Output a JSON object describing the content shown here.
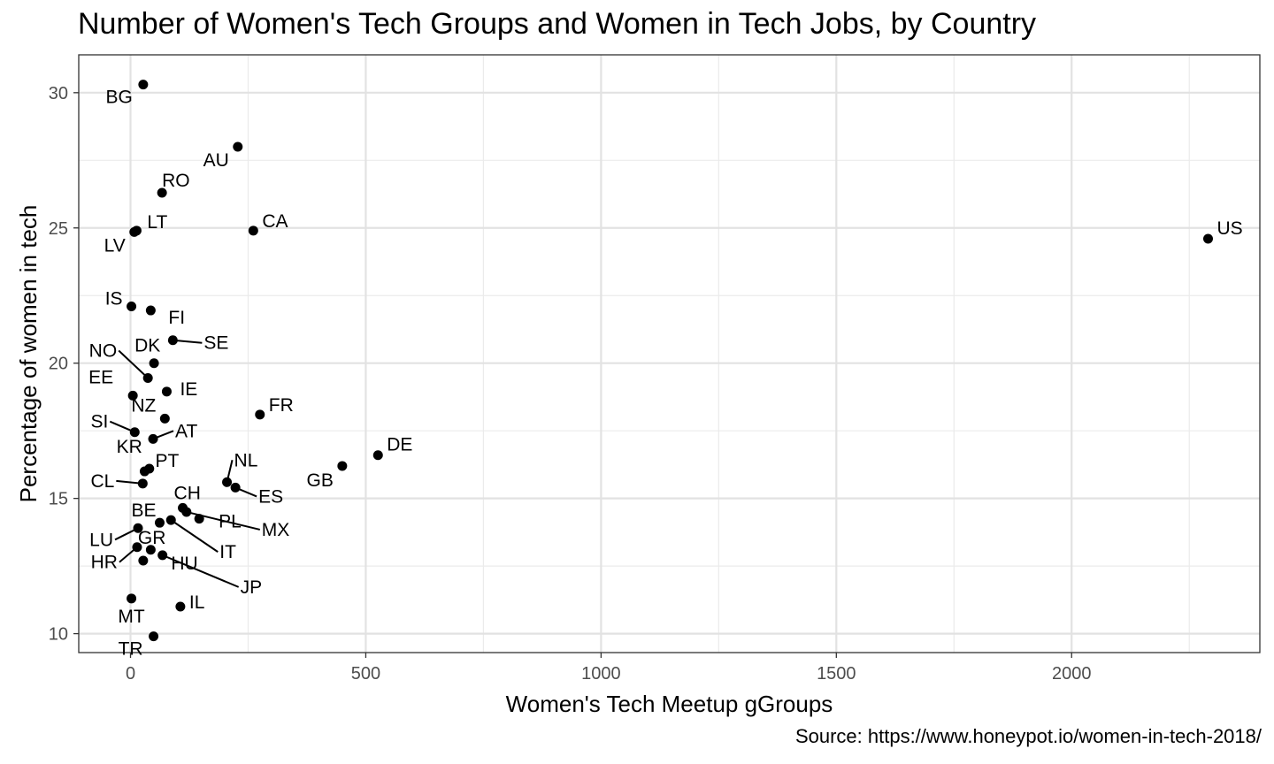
{
  "chart_data": {
    "type": "scatter",
    "title": "Number of Women's Tech Groups and Women in Tech Jobs, by Country",
    "caption": "Source: https://www.honeypot.io/women-in-tech-2018/",
    "xlabel": "Women's Tech Meetup gGroups",
    "ylabel": "Percentage of women in tech",
    "xlim": [
      -110,
      2400
    ],
    "ylim": [
      9.3,
      31.4
    ],
    "xticks": [
      0,
      500,
      1000,
      1500,
      2000
    ],
    "yticks": [
      10,
      15,
      20,
      25,
      30
    ],
    "grid": true,
    "points": [
      {
        "label": "BG",
        "x": 27,
        "y": 30.3
      },
      {
        "label": "AU",
        "x": 228,
        "y": 28.0
      },
      {
        "label": "RO",
        "x": 67,
        "y": 26.3
      },
      {
        "label": "LT",
        "x": 13,
        "y": 24.9
      },
      {
        "label": "LV",
        "x": 8,
        "y": 24.85
      },
      {
        "label": "CA",
        "x": 261,
        "y": 24.9
      },
      {
        "label": "US",
        "x": 2290,
        "y": 24.6
      },
      {
        "label": "IS",
        "x": 2,
        "y": 22.1
      },
      {
        "label": "FI",
        "x": 43,
        "y": 21.95
      },
      {
        "label": "SE",
        "x": 90,
        "y": 20.85
      },
      {
        "label": "DK",
        "x": 50,
        "y": 20.0
      },
      {
        "label": "NO",
        "x": 37,
        "y": 19.45
      },
      {
        "label": "IE",
        "x": 77,
        "y": 18.95
      },
      {
        "label": "EE",
        "x": 5,
        "y": 18.8
      },
      {
        "label": "FR",
        "x": 275,
        "y": 18.1
      },
      {
        "label": "NZ",
        "x": 73,
        "y": 17.95
      },
      {
        "label": "SI",
        "x": 9,
        "y": 17.45
      },
      {
        "label": "AT",
        "x": 48,
        "y": 17.2
      },
      {
        "label": "DE",
        "x": 526,
        "y": 16.6
      },
      {
        "label": "GB",
        "x": 450,
        "y": 16.2
      },
      {
        "label": "KR",
        "x": 40,
        "y": 16.1
      },
      {
        "label": "PT",
        "x": 30,
        "y": 16.0
      },
      {
        "label": "NL",
        "x": 205,
        "y": 15.6
      },
      {
        "label": "CL",
        "x": 26,
        "y": 15.55
      },
      {
        "label": "ES",
        "x": 223,
        "y": 15.4
      },
      {
        "label": "CH",
        "x": 111,
        "y": 14.65
      },
      {
        "label": "MX",
        "x": 119,
        "y": 14.5
      },
      {
        "label": "PL",
        "x": 146,
        "y": 14.25
      },
      {
        "label": "IT",
        "x": 86,
        "y": 14.2
      },
      {
        "label": "BE",
        "x": 62,
        "y": 14.1
      },
      {
        "label": "LU",
        "x": 16,
        "y": 13.9
      },
      {
        "label": "HR",
        "x": 14,
        "y": 13.2
      },
      {
        "label": "HU",
        "x": 43,
        "y": 13.1
      },
      {
        "label": "JP",
        "x": 68,
        "y": 12.9
      },
      {
        "label": "GR",
        "x": 27,
        "y": 12.7
      },
      {
        "label": "MT",
        "x": 2,
        "y": 11.3
      },
      {
        "label": "IL",
        "x": 106,
        "y": 11.0
      },
      {
        "label": "TR",
        "x": 49,
        "y": 9.9
      }
    ]
  }
}
